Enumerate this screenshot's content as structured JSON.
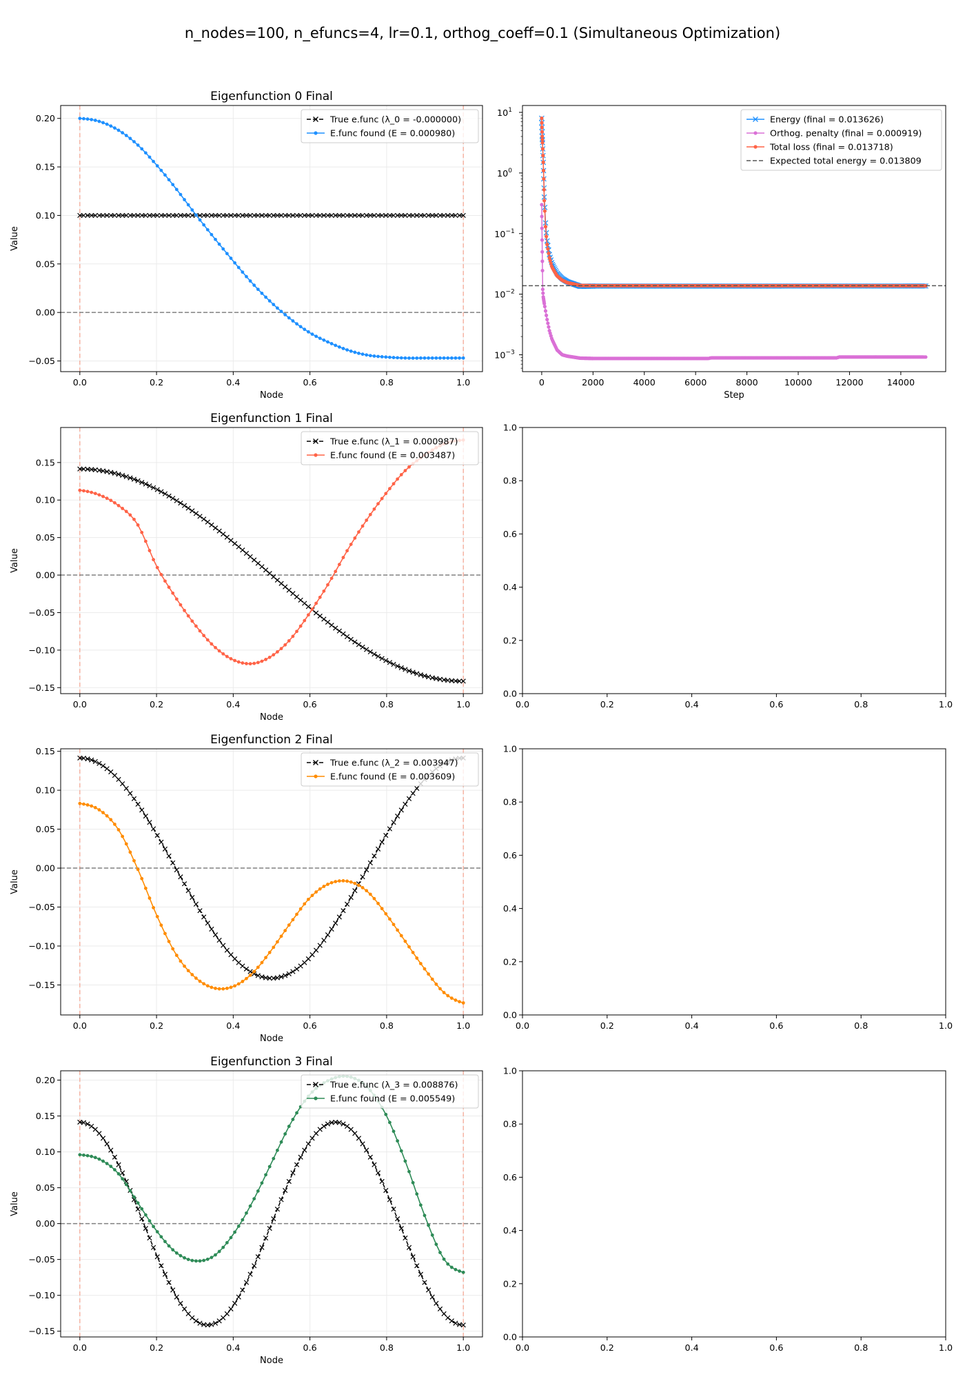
{
  "suptitle": "n_nodes=100, n_efuncs=4, lr=0.1, orthog_coeff=0.1 (Simultaneous Optimization)",
  "chart_data": [
    {
      "type": "line",
      "title": "Eigenfunction 0 Final",
      "xlabel": "Node",
      "ylabel": "Value",
      "xlim": [
        -0.05,
        1.05
      ],
      "ylim": [
        -0.061,
        0.2133
      ],
      "grid": true,
      "legend": "upper-right",
      "xticks": [
        0,
        0.2,
        0.4,
        0.6,
        0.8,
        1.0
      ],
      "xtick_labels": [
        "0.0",
        "0.2",
        "0.4",
        "0.6",
        "0.8",
        "1.0"
      ],
      "yticks": [
        -0.05,
        0,
        0.05,
        0.1,
        0.15,
        0.2
      ],
      "ytick_labels": [
        "−0.05",
        "0.00",
        "0.05",
        "0.10",
        "0.15",
        "0.20"
      ],
      "n_nodes": 100,
      "true_func": {
        "label": "True e.func (λ_0 = -0.000000)",
        "mode": 0,
        "amplitude": 0.1,
        "color": "#000000"
      },
      "found": {
        "label": "E.func found (E = 0.000980)",
        "color": "#1e90ff",
        "x": [
          0,
          0.05,
          0.1,
          0.15,
          0.2,
          0.25,
          0.3,
          0.35,
          0.4,
          0.45,
          0.5,
          0.55,
          0.6,
          0.65,
          0.7,
          0.75,
          0.8,
          0.85,
          0.9,
          0.95,
          1.0
        ],
        "y": [
          0.2,
          0.197,
          0.188,
          0.173,
          0.152,
          0.128,
          0.102,
          0.077,
          0.053,
          0.03,
          0.01,
          -0.007,
          -0.021,
          -0.031,
          -0.039,
          -0.044,
          -0.046,
          -0.047,
          -0.047,
          -0.047,
          -0.047
        ]
      }
    },
    {
      "type": "line",
      "title": "Eigenfunction 1 Final",
      "xlabel": "Node",
      "ylabel": "Value",
      "xlim": [
        -0.05,
        1.05
      ],
      "ylim": [
        -0.158,
        0.1967
      ],
      "grid": true,
      "legend": "upper-right",
      "xticks": [
        0,
        0.2,
        0.4,
        0.6,
        0.8,
        1.0
      ],
      "xtick_labels": [
        "0.0",
        "0.2",
        "0.4",
        "0.6",
        "0.8",
        "1.0"
      ],
      "yticks": [
        -0.15,
        -0.1,
        -0.05,
        0,
        0.05,
        0.1,
        0.15
      ],
      "ytick_labels": [
        "−0.15",
        "−0.10",
        "−0.05",
        "0.00",
        "0.05",
        "0.10",
        "0.15"
      ],
      "n_nodes": 100,
      "true_func": {
        "label": "True e.func (λ_1 = 0.000987)",
        "mode": 1,
        "amplitude": 0.1414,
        "color": "#000000"
      },
      "found": {
        "label": "E.func found (E = 0.003487)",
        "color": "#ff6347",
        "x": [
          0,
          0.05,
          0.1,
          0.15,
          0.2,
          0.25,
          0.3,
          0.35,
          0.4,
          0.45,
          0.5,
          0.55,
          0.6,
          0.65,
          0.7,
          0.75,
          0.8,
          0.85,
          0.9,
          0.95,
          1.0
        ],
        "y": [
          0.113,
          0.107,
          0.093,
          0.068,
          0.012,
          -0.03,
          -0.066,
          -0.095,
          -0.113,
          -0.118,
          -0.108,
          -0.085,
          -0.05,
          -0.01,
          0.035,
          0.075,
          0.11,
          0.14,
          0.16,
          0.175,
          0.18
        ]
      }
    },
    {
      "type": "line",
      "title": "Eigenfunction 2 Final",
      "xlabel": "Node",
      "ylabel": "Value",
      "xlim": [
        -0.05,
        1.05
      ],
      "ylim": [
        -0.1885,
        0.1532
      ],
      "grid": true,
      "legend": "upper-right",
      "xticks": [
        0,
        0.2,
        0.4,
        0.6,
        0.8,
        1.0
      ],
      "xtick_labels": [
        "0.0",
        "0.2",
        "0.4",
        "0.6",
        "0.8",
        "1.0"
      ],
      "yticks": [
        -0.15,
        -0.1,
        -0.05,
        0,
        0.05,
        0.1,
        0.15
      ],
      "ytick_labels": [
        "−0.15",
        "−0.10",
        "−0.05",
        "0.00",
        "0.05",
        "0.10",
        "0.15"
      ],
      "n_nodes": 100,
      "true_func": {
        "label": "True e.func (λ_2 = 0.003947)",
        "mode": 2,
        "amplitude": 0.1414,
        "color": "#000000"
      },
      "found": {
        "label": "E.func found (E = 0.003609)",
        "color": "#ff8c00",
        "x": [
          0,
          0.05,
          0.1,
          0.15,
          0.2,
          0.25,
          0.3,
          0.35,
          0.4,
          0.45,
          0.5,
          0.55,
          0.6,
          0.65,
          0.7,
          0.75,
          0.8,
          0.85,
          0.9,
          0.95,
          1.0
        ],
        "y": [
          0.083,
          0.075,
          0.05,
          0.0,
          -0.06,
          -0.11,
          -0.14,
          -0.154,
          -0.152,
          -0.135,
          -0.105,
          -0.07,
          -0.038,
          -0.02,
          -0.017,
          -0.03,
          -0.06,
          -0.095,
          -0.13,
          -0.16,
          -0.173
        ]
      }
    },
    {
      "type": "line",
      "title": "Eigenfunction 3 Final",
      "xlabel": "Node",
      "ylabel": "Value",
      "xlim": [
        -0.05,
        1.05
      ],
      "ylim": [
        -0.158,
        0.213
      ],
      "grid": true,
      "legend": "upper-right",
      "xticks": [
        0,
        0.2,
        0.4,
        0.6,
        0.8,
        1.0
      ],
      "xtick_labels": [
        "0.0",
        "0.2",
        "0.4",
        "0.6",
        "0.8",
        "1.0"
      ],
      "yticks": [
        -0.15,
        -0.1,
        -0.05,
        0,
        0.05,
        0.1,
        0.15,
        0.2
      ],
      "ytick_labels": [
        "−0.15",
        "−0.10",
        "−0.05",
        "0.00",
        "0.05",
        "0.10",
        "0.15",
        "0.20"
      ],
      "n_nodes": 100,
      "true_func": {
        "label": "True e.func (λ_3 = 0.008876)",
        "mode": 3,
        "amplitude": 0.1414,
        "color": "#000000"
      },
      "found": {
        "label": "E.func found (E = 0.005549)",
        "color": "#2e8b57",
        "x": [
          0,
          0.05,
          0.1,
          0.15,
          0.2,
          0.25,
          0.3,
          0.35,
          0.4,
          0.45,
          0.5,
          0.55,
          0.6,
          0.65,
          0.7,
          0.75,
          0.8,
          0.85,
          0.9,
          0.95,
          1.0
        ],
        "y": [
          0.096,
          0.09,
          0.07,
          0.03,
          -0.01,
          -0.04,
          -0.052,
          -0.045,
          -0.015,
          0.03,
          0.085,
          0.14,
          0.18,
          0.2,
          0.205,
          0.19,
          0.15,
          0.085,
          0.01,
          -0.05,
          -0.068
        ]
      }
    },
    {
      "type": "line",
      "yscale": "log",
      "title": "",
      "xlabel": "Step",
      "ylabel": "",
      "xlim": [
        -750,
        15750
      ],
      "ylim_log10": [
        -3.278,
        1.1135
      ],
      "grid": false,
      "legend": "upper-right",
      "xticks": [
        0,
        2000,
        4000,
        6000,
        8000,
        10000,
        12000,
        14000
      ],
      "xtick_labels": [
        "0",
        "2000",
        "4000",
        "6000",
        "8000",
        "10000",
        "12000",
        "14000"
      ],
      "yticks_log10": [
        -3,
        -2,
        -1,
        0,
        1
      ],
      "ytick_base": "10",
      "ytick_exponents": [
        "−3",
        "−2",
        "−1",
        "0",
        "1"
      ],
      "series": [
        {
          "name": "Energy (final = 0.013626)",
          "color": "#1e90ff",
          "marker": "x",
          "points": [
            [
              0,
              8
            ],
            [
              20,
              4
            ],
            [
              40,
              2.5
            ],
            [
              60,
              1.5
            ],
            [
              80,
              0.8
            ],
            [
              100,
              0.4
            ],
            [
              150,
              0.15
            ],
            [
              200,
              0.08
            ],
            [
              300,
              0.045
            ],
            [
              400,
              0.032
            ],
            [
              600,
              0.022
            ],
            [
              800,
              0.018
            ],
            [
              1000,
              0.016
            ],
            [
              1500,
              0.0135
            ],
            [
              2000,
              0.0136
            ],
            [
              15000,
              0.013626
            ]
          ]
        },
        {
          "name": "Orthog. penalty (final = 0.000919)",
          "color": "#da70d6",
          "marker": "dot",
          "points": [
            [
              0,
              0.3
            ],
            [
              20,
              0.05
            ],
            [
              40,
              0.012
            ],
            [
              60,
              0.009
            ],
            [
              100,
              0.007
            ],
            [
              200,
              0.004
            ],
            [
              300,
              0.0025
            ],
            [
              400,
              0.0018
            ],
            [
              600,
              0.0012
            ],
            [
              800,
              0.001
            ],
            [
              1000,
              0.00095
            ],
            [
              1500,
              0.00088
            ],
            [
              2000,
              0.00087
            ],
            [
              6500,
              0.00087
            ],
            [
              6600,
              0.00089
            ],
            [
              11500,
              0.00089
            ],
            [
              11600,
              0.00092
            ],
            [
              15000,
              0.000919
            ]
          ]
        },
        {
          "name": "Total loss (final = 0.013718)",
          "color": "#ff6347",
          "marker": "dot",
          "points": [
            [
              0,
              8
            ],
            [
              20,
              4
            ],
            [
              40,
              2.5
            ],
            [
              60,
              1.5
            ],
            [
              80,
              0.8
            ],
            [
              100,
              0.35
            ],
            [
              150,
              0.13
            ],
            [
              200,
              0.07
            ],
            [
              300,
              0.04
            ],
            [
              400,
              0.028
            ],
            [
              600,
              0.02
            ],
            [
              800,
              0.017
            ],
            [
              1000,
              0.0155
            ],
            [
              1500,
              0.0139
            ],
            [
              2000,
              0.0138
            ],
            [
              15000,
              0.013718
            ]
          ]
        }
      ],
      "hline": {
        "name": "Expected total energy = 0.013809",
        "value": 0.013809,
        "color": "#555555"
      }
    },
    {
      "type": "empty",
      "xlim": [
        0,
        1
      ],
      "ylim": [
        0,
        1
      ],
      "ticks": [
        0,
        0.2,
        0.4,
        0.6,
        0.8,
        1.0
      ],
      "tick_labels": [
        "0.0",
        "0.2",
        "0.4",
        "0.6",
        "0.8",
        "1.0"
      ]
    },
    {
      "type": "empty",
      "xlim": [
        0,
        1
      ],
      "ylim": [
        0,
        1
      ],
      "ticks": [
        0,
        0.2,
        0.4,
        0.6,
        0.8,
        1.0
      ],
      "tick_labels": [
        "0.0",
        "0.2",
        "0.4",
        "0.6",
        "0.8",
        "1.0"
      ]
    },
    {
      "type": "empty",
      "xlim": [
        0,
        1
      ],
      "ylim": [
        0,
        1
      ],
      "ticks": [
        0,
        0.2,
        0.4,
        0.6,
        0.8,
        1.0
      ],
      "tick_labels": [
        "0.0",
        "0.2",
        "0.4",
        "0.6",
        "0.8",
        "1.0"
      ]
    }
  ]
}
